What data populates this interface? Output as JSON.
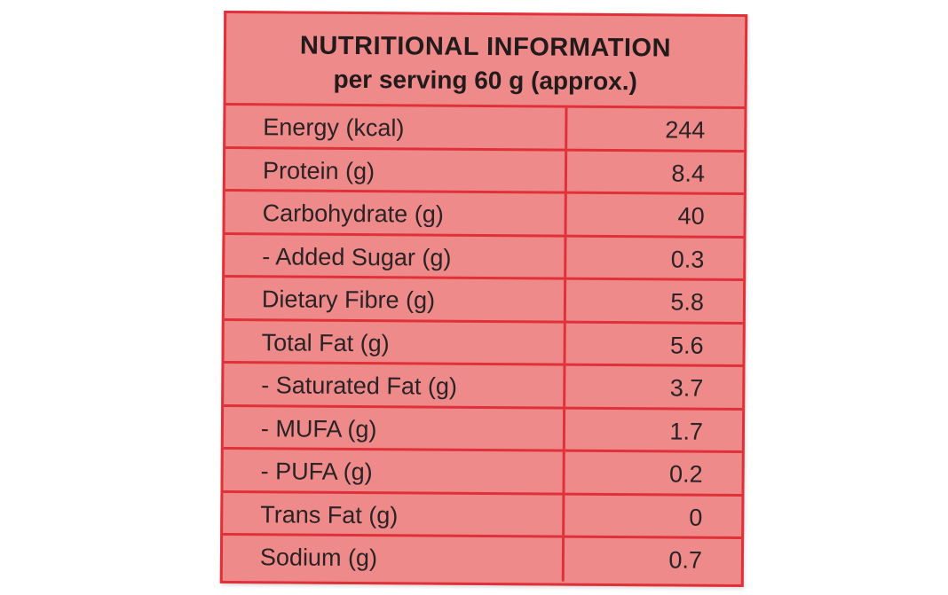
{
  "header": {
    "title": "NUTRITIONAL INFORMATION",
    "subtitle": "per serving 60 g (approx.)"
  },
  "table": {
    "rows": [
      [
        "Energy (kcal)",
        "244"
      ],
      [
        "Protein (g)",
        "8.4"
      ],
      [
        "Carbohydrate (g)",
        "40"
      ],
      [
        "- Added Sugar (g)",
        "0.3"
      ],
      [
        "Dietary Fibre (g)",
        "5.8"
      ],
      [
        "Total Fat (g)",
        "5.6"
      ],
      [
        "- Saturated Fat (g)",
        "3.7"
      ],
      [
        "- MUFA (g)",
        "1.7"
      ],
      [
        "- PUFA (g)",
        "0.2"
      ],
      [
        "Trans Fat (g)",
        "0"
      ],
      [
        "Sodium (g)",
        "0.7"
      ]
    ]
  }
}
